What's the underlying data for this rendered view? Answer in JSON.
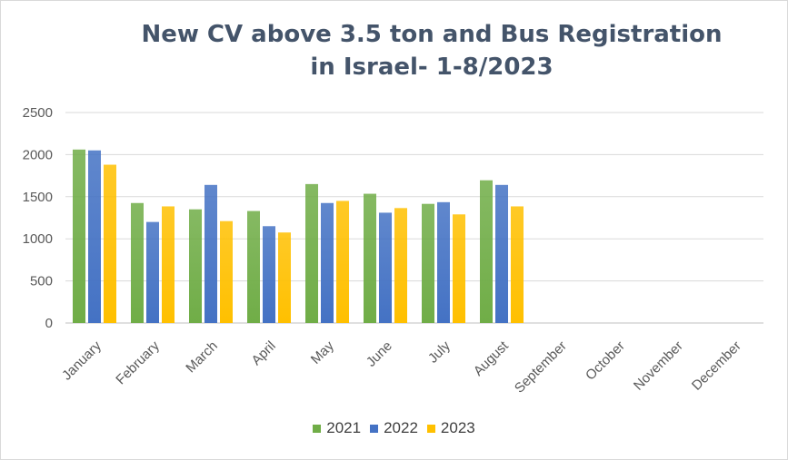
{
  "chart_data": {
    "type": "bar",
    "title_lines": [
      "New CV above 3.5 ton and Bus Registration",
      "in Israel- 1-8/2023"
    ],
    "categories": [
      "January",
      "February",
      "March",
      "April",
      "May",
      "June",
      "July",
      "August",
      "September",
      "October",
      "November",
      "December"
    ],
    "series": [
      {
        "name": "2021",
        "color": "#70ad47",
        "values": [
          2060,
          1425,
          1350,
          1330,
          1650,
          1535,
          1415,
          1695,
          null,
          null,
          null,
          null
        ]
      },
      {
        "name": "2022",
        "color": "#4472c4",
        "values": [
          2050,
          1200,
          1640,
          1150,
          1425,
          1310,
          1435,
          1640,
          null,
          null,
          null,
          null
        ]
      },
      {
        "name": "2023",
        "color": "#ffc000",
        "values": [
          1880,
          1385,
          1210,
          1075,
          1450,
          1365,
          1290,
          1385,
          null,
          null,
          null,
          null
        ]
      }
    ],
    "yticks": [
      0,
      500,
      1000,
      1500,
      2000,
      2500
    ],
    "ylim": [
      0,
      2500
    ],
    "grid": true,
    "legend_position": "bottom"
  }
}
